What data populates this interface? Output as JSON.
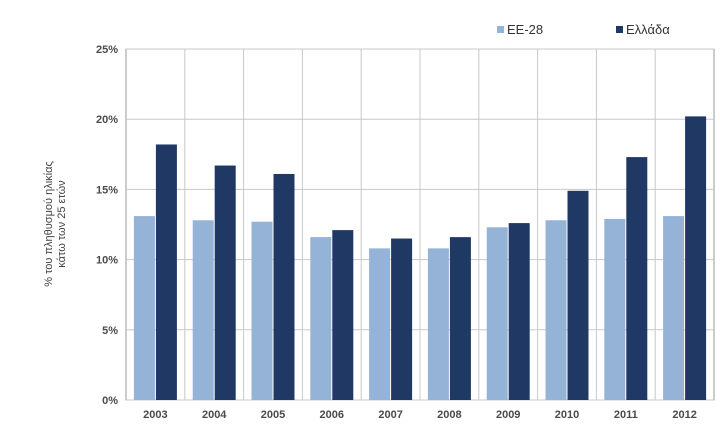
{
  "chart_data": {
    "type": "bar",
    "categories": [
      "2003",
      "2004",
      "2005",
      "2006",
      "2007",
      "2008",
      "2009",
      "2010",
      "2011",
      "2012"
    ],
    "series": [
      {
        "name": "ΕΕ-28",
        "color": "#95b3d7",
        "values": [
          13.1,
          12.8,
          12.7,
          11.6,
          10.8,
          10.8,
          12.3,
          12.8,
          12.9,
          13.1
        ]
      },
      {
        "name": "Ελλάδα",
        "color": "#1f3864",
        "values": [
          18.2,
          16.7,
          16.1,
          12.1,
          11.5,
          11.6,
          12.6,
          14.9,
          17.3,
          20.2
        ]
      }
    ],
    "ylabel_lines": [
      "% του πληθυσμού ηλικίας",
      "κάτω των 25 ετών"
    ],
    "yticks": [
      0,
      5,
      10,
      15,
      20,
      25
    ],
    "ytick_labels": [
      "0%",
      "5%",
      "10%",
      "15%",
      "20%",
      "25%"
    ],
    "ylim": [
      0,
      25
    ],
    "grid": true,
    "legend_position": "top-right"
  }
}
